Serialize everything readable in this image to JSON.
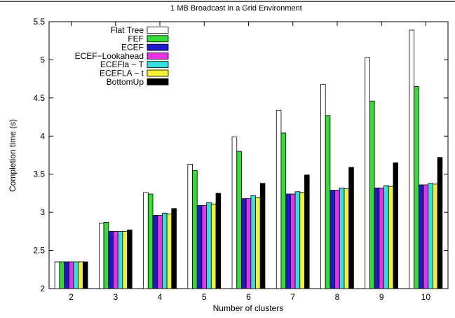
{
  "chart_data": {
    "type": "bar",
    "title": "1 MB Broadcast in a Grid Environment",
    "xlabel": "Number of clusters",
    "ylabel": "Completion time (s)",
    "ylim": [
      2,
      5.5
    ],
    "yticks": [
      "2",
      "2.5",
      "3",
      "3.5",
      "4",
      "4.5",
      "5",
      "5.5"
    ],
    "categories": [
      "2",
      "3",
      "4",
      "5",
      "6",
      "7",
      "8",
      "9",
      "10"
    ],
    "legend_position": "top-left",
    "grid": false,
    "series": [
      {
        "name": "Flat Tree",
        "color": "#ffffff",
        "values": [
          2.35,
          2.86,
          3.26,
          3.63,
          3.99,
          4.34,
          4.68,
          5.03,
          5.39
        ]
      },
      {
        "name": "FEF",
        "color": "#33dd33",
        "values": [
          2.35,
          2.87,
          3.24,
          3.55,
          3.8,
          4.04,
          4.27,
          4.46,
          4.65
        ]
      },
      {
        "name": "ECEF",
        "color": "#1a1acc",
        "values": [
          2.35,
          2.75,
          2.96,
          3.09,
          3.18,
          3.24,
          3.29,
          3.32,
          3.36
        ]
      },
      {
        "name": "ECEF−Lookahead",
        "color": "#e633e6",
        "values": [
          2.35,
          2.75,
          2.96,
          3.09,
          3.18,
          3.24,
          3.29,
          3.32,
          3.36
        ]
      },
      {
        "name": "ECEFla − T",
        "color": "#33e0e0",
        "values": [
          2.35,
          2.75,
          2.99,
          3.13,
          3.22,
          3.27,
          3.32,
          3.35,
          3.38
        ]
      },
      {
        "name": "ECEFLA − t",
        "color": "#f2f233",
        "values": [
          2.35,
          2.75,
          2.98,
          3.11,
          3.2,
          3.26,
          3.31,
          3.34,
          3.37
        ]
      },
      {
        "name": "BottomUp",
        "color": "#000000",
        "values": [
          2.35,
          2.77,
          3.05,
          3.25,
          3.38,
          3.49,
          3.59,
          3.65,
          3.72
        ]
      }
    ]
  }
}
